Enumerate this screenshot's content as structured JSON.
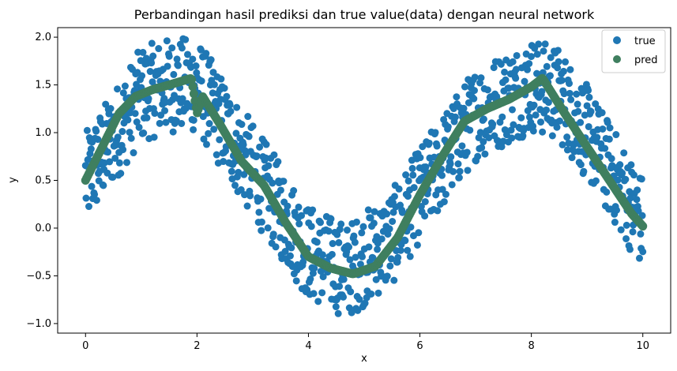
{
  "chart_data": {
    "type": "scatter",
    "title": "Perbandingan hasil prediksi dan true value(data) dengan neural network",
    "xlabel": "x",
    "ylabel": "y",
    "xlim": [
      -0.5,
      10.5
    ],
    "ylim": [
      -1.1,
      2.1
    ],
    "xticks": [
      0,
      2,
      4,
      6,
      8,
      10
    ],
    "yticks": [
      -1.0,
      -0.5,
      0.0,
      0.5,
      1.0,
      1.5,
      2.0
    ],
    "grid": false,
    "legend": {
      "position": "top-right",
      "entries": [
        {
          "label": "true",
          "color": "#1f77b4"
        },
        {
          "label": "pred",
          "color": "#3f7f5f"
        }
      ]
    },
    "series": [
      {
        "name": "true",
        "color": "#1f77b4",
        "kind": "scatter",
        "noise_amplitude": 0.5,
        "trend": {
          "x": [
            0,
            1,
            1.5,
            2,
            3,
            4,
            4.7,
            5.5,
            6,
            7,
            8,
            8.5,
            9,
            10
          ],
          "y": [
            0.5,
            1.4,
            1.5,
            1.5,
            0.6,
            -0.25,
            -0.45,
            -0.1,
            0.35,
            1.2,
            1.5,
            1.4,
            1.0,
            0.05
          ]
        }
      },
      {
        "name": "pred",
        "color": "#3f7f5f",
        "kind": "thick-scatter",
        "x": [
          0,
          0.3,
          0.6,
          0.9,
          1.2,
          1.5,
          1.9,
          2.0,
          2.1,
          2.4,
          2.8,
          3.2,
          3.6,
          4.0,
          4.4,
          4.8,
          5.2,
          5.6,
          6.0,
          6.4,
          6.8,
          7.2,
          7.6,
          8.0,
          8.2,
          8.6,
          9.0,
          9.4,
          9.8,
          10.0
        ],
        "y": [
          0.5,
          0.85,
          1.2,
          1.38,
          1.45,
          1.5,
          1.57,
          1.2,
          1.38,
          1.1,
          0.7,
          0.45,
          0.05,
          -0.3,
          -0.42,
          -0.48,
          -0.4,
          -0.1,
          0.35,
          0.75,
          1.12,
          1.25,
          1.35,
          1.48,
          1.57,
          1.2,
          0.85,
          0.5,
          0.15,
          0.02
        ]
      }
    ]
  }
}
